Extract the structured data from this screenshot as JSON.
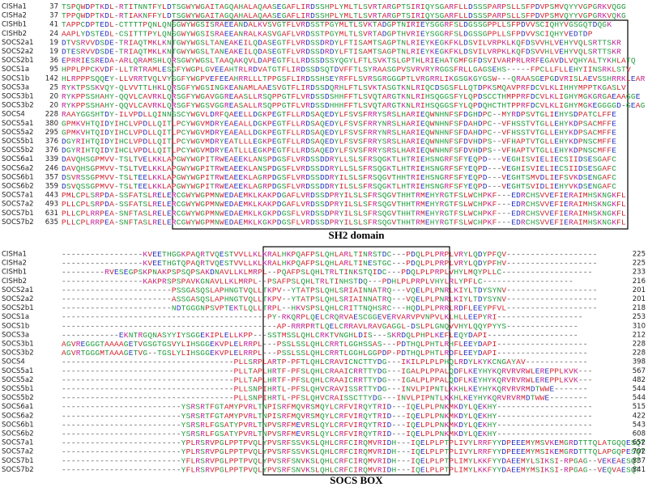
{
  "figure": {
    "rows_top": [
      {
        "name": "CISHa1",
        "start": "37",
        "sequence": "TSPQWDPTKDL-RTITNNTFYLDTSGWYWGAITAGQAHALAQAASEGAFLIRDSSHPLYMLTLSVRTARGPTSIRIQYSGARFLLDSSSPARPSLLSFPDVPSMVQYYVGPGRKVQGG"
      },
      {
        "name": "CISHa2",
        "start": "37",
        "sequence": "TPPQWDPTKDL-RTIAKNFFYLDTSGWYWGAITAGQAHALAQAASEGAFLIRDSSHPLYMLTLSVRTARGPTSIRIQYSGARFLLDSSSPARPSLLSFPDVPSMVQYYVGPGRKVQKG"
      },
      {
        "name": "CISHb1",
        "start": "41",
        "sequence": "TAPPCDPTEDL-CTTTTPQNLQNSGWYWGSISRAEEANDALKVSVGTFLVRDSSTPGYMLTLSVKTADGPTNIRIEYSGGRFSLDGSSGPPLLSFPDVVSCIQHYVGSGQTDQGK"
      },
      {
        "name": "CISHb2",
        "start": "24",
        "sequence": "AAPLYDSTEDL-CSITTTPYLQNSGWYWGSISRAEEANRALKASVGAFLVRDSSTPGYMLTLSVRTADGPTHVRIEYSGGRFSLDGSSGPPLLSFPDVVSCIQHYVEDTDP"
      },
      {
        "name": "SOCS2a1",
        "start": "19",
        "sequence": "DTVSRVVDSDE-TRIAQTMKLKNTGWYWGSLTANEAKEILQDASEGTFLVRDSSDRDYLFTISAMTSAGPTNLRIEYKEGKFKLDSVILVRPKLKQFDSVVHLVEHYVQLSRTTSKR"
      },
      {
        "name": "SOCS2a2",
        "start": "19",
        "sequence": "DTESRVVDSDE-TRIAQTMKLKNTGWYWGSLTANEAKEILQDASEGTFLVRDSSDRDYLFTISAMTSAGPTNLRIEYKEGKFKLDSVILVRPKLKQFDSVVHLVEHYVQLSRTTSKR"
      },
      {
        "name": "SOCS2b1",
        "start": "36",
        "sequence": "EPRRIESREDA-ARLQRAMSHLQRSGWYWGSLTAAQAKQVLDAPEGTFLLRDSSDSSYQGYLFTLSVKTSLGPTHLRIEHATGMFGFDSVIVARPRLRRFEGAVDLVQHYALTYKHLATQ"
      },
      {
        "name": "SOCS1a",
        "start": "95",
        "sequence": "HPPLPPCKVDF-LLTRTRAMLESGFYWGPLGVEEAHTRLRDVATGTFLIRDSSDSQTDVFFTLSYRAASGPVSVRVRYRGGSFRLLGAGSEHS-----FPCLLFLLEHYIINSRKLSTV"
      },
      {
        "name": "SOCS1b",
        "start": "142",
        "sequence": "HLRPPPSQQEY-LLVRRTVQLVYSGFYWGPVEFEEAHRRLLLTPPGSFLIRDSSHSEYRFFLSVRSGRGGGPTLVRGRRLIKGSGKGYGSW---QRAASGEPGDVRISLAEVSSHRRKLEAR"
      },
      {
        "name": "SOCS3a",
        "start": "25",
        "sequence": "RYKTPSSKVQY-QLVVTTLHKLQRSGFYWGSINGKEANAMLAAESVGTFLIRDSSDQRHLFTLSVKTASGTKNLRIQCDSGSFLLQTDPKSMQAVPRFDCVLKLIHHYMPPTKGASLV"
      },
      {
        "name": "SOCS3b1",
        "start": "20",
        "sequence": "RYKPPSSHAHY-QQVLCAVRKLQRSGFYWGAVGGREAASLLRSQPPGTFLVRDSSDSHHFFTLSVQTARGTKNLRIHSQGGSFYLQPDSCCTHMPPRFDCVLKLIGHYMGKGRGAEAAGGE"
      },
      {
        "name": "SOCS3b2",
        "start": "20",
        "sequence": "RYKPPSSHAHY-QQVLCAVRKLQRSGFYWGSVGGREASALLRSQPPGTFLVRDSSDHHHFFTLSVQTARGTKNLRIHSQGGSFYLQPDQHCTHTPPRFDCVLKLIGHYMGKEGGGGD-GEAG"
      },
      {
        "name": "SOCS4",
        "start": "228",
        "sequence": "RAAYGGSHTDY-ILVPDLLQINNSSCYWGVLDRFQAEELLDGKPEGTFLLRDSAQEDYLFSVSFRRYSRSLHARIEQWNHNFSFDGHDPC--MYRDPSVTGLIEHYSDPATCLFFE"
      },
      {
        "name": "SOCS5a1",
        "start": "380",
        "sequence": "GPMKVHTQIDYIHCLVPDLLQITLPCYWGVMDRYEAEALLDGKPEGTFLLRDSAQEDYLFSVSFRRYNRSLHARIEQWNHNFSFDAHDPC--VFHSSTVTGLLEHYKDPSACMFFE"
      },
      {
        "name": "SOCS5a2",
        "start": "295",
        "sequence": "GPMKVHTQIDYIHCLVPDLLQITLPCYWGVMDRYEAEALLDGKPEGTFLLRDSAQEDYLFSVSFRRYNRSLHARIEQWNHNFSFDAHDPC--VFHSSTVTGLLEHYKDPSACMFFE"
      },
      {
        "name": "SOCS5b1",
        "start": "376",
        "sequence": "DGYRIHTQIDYIHCLVPDLLQITLPCYWGVMDRYEATLLLEGKPEGTFLLRDSAQEDYLFSVSFRRYSRSLHARIEQWNHNFSFDVHDPS--VFHAPTVTGLLEHYKDPNSCMFFE"
      },
      {
        "name": "SOCS5b2",
        "start": "376",
        "sequence": "DGYRIHTQIDYIHCLVPDLLQITLPCYWGVMDRYEATLLLEGKPEGTFLLRDSAQEDYLFSVSFRRYSRSLHARIEQWNHNFSFDVHDPS--VFHAPTVTGLLEHYKDPNSCMFFE"
      },
      {
        "name": "SOCS6a1",
        "start": "339",
        "sequence": "DAVQHSGPMVV-TSLTVELKKLAPGWYWGPITRWEAEEKLANSPDGSFLVRDSSDDRYLLSLSFRSQGKTLHTRIEHSNGRFSFYEQPD---VEGHISVIELIECSIIDSESGAFC"
      },
      {
        "name": "SOCS6a2",
        "start": "246",
        "sequence": "DAVQHSGPMVV-TSLTVELKKLAPGWYWGPITRWEAEEKLANSPDGSFLVRDSSDDRYLLSLSFRSQGKTLHTRIEHSNGRFSFYEQPD---VEGHISVIELIECSIIDSESGAFC"
      },
      {
        "name": "SOCS6b1",
        "start": "357",
        "sequence": "DSVRSSGPMVV-TSLTEELKKLAPGWYWGPITRWEAEEKLAGRPDGSFLVRDSSDDRYILSLSFRSQGVTHHTRIEHSNGRFSFYEQPD---VEGHTSMVDLIEFSVKDSENGAFC"
      },
      {
        "name": "SOCS6b2",
        "start": "359",
        "sequence": "DSVQSSGPMVV-TSLTEELKKLAPGWYWGPITRWEAEEKLAGRPDGSFLVRDSSDDRYILSLSFRSQGKTLHTRIEHSNGRFSFYEQPD---VEGHTSVIDLIEHYVKDSENGAFC"
      },
      {
        "name": "SOCS7a1",
        "start": "443",
        "sequence": "PMLCPLSRPDA-SSFATSLRELERCGWYWGPMNWEDAEMKLKAKPDGAFLVRDSSDPRYILSLSFRSQGVTHHTRMEHYRGTFSLWCHPKF---EDRCHSVVEFIERAIMHSKNGKFL"
      },
      {
        "name": "SOCS7a2",
        "start": "493",
        "sequence": "PLLCPLSRPDA-SSFATSLRELERCGWYWGPMNWEDAEMKLKAKPDGAFLVRDSSDPRYILSLSFRSQGVTHHTRMEHYRGTFSLWCHPKF---EDRCHSVVEFIERAIMHSKNGKFL"
      },
      {
        "name": "SOCS7b1",
        "start": "631",
        "sequence": "PLLCPLRRPEA-SNFTASLRELERCGWYWGPMNWEDAEMKLKGKPDGSFLVRDSSDPRYILSLSFRSQGVTHHTRMEHYRGTFSLWCHPKF---EDRCHSVVEFIERAIMHSKNGKFL"
      },
      {
        "name": "SOCS7b2",
        "start": "635",
        "sequence": "PLLCPLRRPEA-SNFTASLRELERCGWYWGPMNWEDAEMKLKGKPDGSFLVRDSSDPRYILSLSFRSQGVTHHTRMEHYRGTFSLWCHPKF---EDRCHSVVEFIERAIMHSKNGKFL"
      }
    ],
    "label_top": "SH2 domain",
    "rows_bottom": [
      {
        "name": "CISHa1",
        "sequence": "-----------------KVEETHGGKPAQRTVQESTVVLLKLKRALHKPQAFPSLQHLARLTINRSTDC---PDQLPLPRPLVRYLQDYPFQV-------------------",
        "end": "225"
      },
      {
        "name": "CISHa2",
        "sequence": "-----------------KVEETHGTQPAQRTVQESTVVLLKLKRALHKPQAFPSLQHLARLTINESTGC---PDQLPLPRPLVRYLQDYPFHV-------------------",
        "end": "225"
      },
      {
        "name": "CISHb1",
        "sequence": "---------RVESEGPSKPNAKPSPSQPSAKDNAVLLKLMRPL--PQAFPSLQHLTRLTINKSTQIDC---PDQLPLPRPLVHYLMQYPLLC-------------------",
        "end": "233"
      },
      {
        "name": "CISHb2",
        "sequence": "-----------------KAKPRSPSPAVKGNAVLLKLMRPL--PSAFPSLQHLTRLTINHSTDQ---PDHLPLPRPLVHYLRLYPFLC-------------------",
        "end": "216"
      },
      {
        "name": "SOCS2a1",
        "sequence": "-----------------------PSSGASQSLAPHNGTVQLLTKPV--YTATPSLQHLSRIAINNATRQ---VQELPLPNRLKIYLTDYSYNV-------------------",
        "end": "201"
      },
      {
        "name": "SOCS2a2",
        "sequence": "-----------------------ASSGASQSLAPHNGTVQLLTKPV--YTATPSLQHLSRIAINNATRQ---VQELPLPNRLKIYLTDYSYNV-------------------",
        "end": "201"
      },
      {
        "name": "SOCS2b1",
        "sequence": "-----------------------NDTGGGNPSVPTEKTLQLLTRPL--HKVSPSLQHLCRITTNQHSRC---HQDLPLPRRLRDFLEEYPFVL-------------------",
        "end": "218"
      },
      {
        "name": "SOCS1a",
        "sequence": "-------------------------------------------PY-RKQRPLQELCRQRVAESCGGEVERVARVPVNPVLKLHLLEEPYRI------------------",
        "end": "253"
      },
      {
        "name": "SOCS1b",
        "sequence": "---------------------------------------------AP-RRRPRTLQELCRRAVLRAVGAGGL-DSLPLGNQVVHYLQQYPYYS---------------",
        "end": "310"
      },
      {
        "name": "SOCS3a",
        "sequence": "------------EKNTRGQNASYYIYSGGEKIPLELLKPP---SSTMSSLQHLCRKTVNGHLDIS---SKRDQLPHPLKEFLEQYDAPI-------------------",
        "end": "212"
      },
      {
        "name": "SOCS3b1",
        "sequence": "AGVREGGGTAAAAGETVGSGTGSVYLIHSGGEKVPLELRRPL---PSSLSSLQHLCRRTLGGHSSAS---PDTHQLPHTLRHFLEEYDAPI-------------------",
        "end": "228"
      },
      {
        "name": "SOCS3b2",
        "sequence": "AGVRTGGGMTAAAGETVG--TGSLYLIHSGGEKVPLELRRPL---PSSLSSLQHLCRRTLGGHLGGPDP-PDTHQLPHTLRDFLEEYDAPI-------------------",
        "end": "228"
      },
      {
        "name": "SOCS4",
        "sequence": "------------------------------------PLLSRPLARTP-PFTLQHLCRAVICNCTTYDG---IKILPLPLPHQLRDYLKYKCNGAYAV-------------",
        "end": "398"
      },
      {
        "name": "SOCS5a1",
        "sequence": "------------------------------------PLLTAPLHRTF-PFSLQHLCRAAICRRTTYDG---IGALPLPPALQDFLKEYHYKQRVRVRWLEREPPLKVK---",
        "end": "567"
      },
      {
        "name": "SOCS5a2",
        "sequence": "------------------------------------PLLTAPLHRTF-PFSLQHLCRAAICRRTTYDG---IGALPLPPALQDFLKEYHYKQRVRVRWLEREPPLKVK---",
        "end": "482"
      },
      {
        "name": "SOCS5b1",
        "sequence": "------------------------------------PLLSNPIHRTL-PFSLQHVCRAVISSRTTYDG---INVLPIPNTLKKHLKEYHYKQRVRVRMDTWWE-------",
        "end": "544"
      },
      {
        "name": "SOCS5b2",
        "sequence": "------------------------------------PLLSNPIHRTL-PFSLQHVCRAISSCTTYDG---INVLPIPNTLKKHLKEYHYKQRVRVRMDTWWE--------",
        "end": "544"
      },
      {
        "name": "SOCS6a1",
        "sequence": "-------------------------YSRSRTFGTAMYPVRLTNPISRFMQVRSMQYLCRFVIRQYTRID---IQELPLPNKMKDYLQEKHY--------------------",
        "end": "515"
      },
      {
        "name": "SOCS6a2",
        "sequence": "-------------------------YSRSRTFGTAMYPVRLTNPISRFMQVRSMQYLCRFVIRQYTRID---IQELPLPNKMKDYLQEKHY--------------------",
        "end": "422"
      },
      {
        "name": "SOCS6b1",
        "sequence": "-------------------------YSRSRLFGSATYPVRLTNPVSRFMEVRSLQYLCRFVIRQYTRID---IQELPLPNKMKDYLQEKHY--------------------",
        "end": "543"
      },
      {
        "name": "SOCS6b2",
        "sequence": "-------------------------YSRSRLFGSATYPVRLTNPVSRFMEVRSLQYLCRFVIRQYTRID---IQELPLPNKMKDYLQEKHY--------------------",
        "end": "608"
      },
      {
        "name": "SOCS7a1",
        "sequence": "-------------------------YPLRSRVPGLPPTPVQLYPVSRFSSVKSLQHLCRFCIRQMVRIDH---IQELPLPTPLIVYLRRFYYDPEEEMYMSVKEMGRDTTTQLATGQQESQT",
        "end": "652"
      },
      {
        "name": "SOCS7a2",
        "sequence": "-------------------------YPLRSRVPGLPPTPVQLYPVSRFSSVKSLQHLCRFCIRQMVRIDH---IQELPLPTPLIVYLRRFYYDPEEEMYMSIKEMGRDTTTQLAPGQPESQT",
        "end": "702"
      },
      {
        "name": "SOCS7b1",
        "sequence": "-------------------------YFLRSRVPGLPPTPVQLYPVSRFSNVKSLQHLCRFCIRQMVRIDH---IQELPLPTPLIMYLKKFYYDAEEMYLSIKSI-RPGAG--VEKEAESQT",
        "end": "837"
      },
      {
        "name": "SOCS7b2",
        "sequence": "-------------------------YFLRSRVPGLPPTPVQLYPVSRFSNVKSLQHLCRFCIRQMVRIDH---IQELPLPTPLIMYLKKFYYDAEEMYMSIKSI-RPGAG--VEQVAESQT",
        "end": "841"
      }
    ],
    "label_bottom": "SOCS BOX"
  }
}
